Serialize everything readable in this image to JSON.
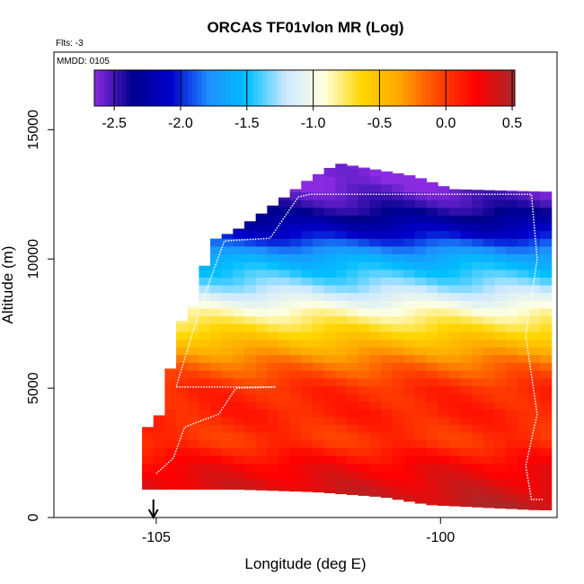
{
  "chart_data": {
    "type": "heatmap",
    "title": "ORCAS TF01vlon MR (Log)",
    "flights_label": "Flts: -3",
    "date_label": "MMDD: 0105",
    "xlabel": "Longitude (deg E)",
    "ylabel": "Altitude (m)",
    "xlim": [
      -106.8,
      -97.95
    ],
    "ylim": [
      0,
      18000
    ],
    "x_ticks": [
      -105,
      -100
    ],
    "x_tick_labels": [
      "-105",
      "-100"
    ],
    "y_ticks": [
      0,
      5000,
      10000,
      15000
    ],
    "y_tick_labels": [
      "0",
      "5000",
      "10000",
      "15000"
    ],
    "colorbar": {
      "range": [
        -2.65,
        0.52
      ],
      "ticks": [
        -2.5,
        -2.0,
        -1.5,
        -1.0,
        -0.5,
        0.0,
        0.5
      ],
      "tick_labels": [
        "-2.5",
        "-2.0",
        "-1.5",
        "-1.0",
        "-0.5",
        "0.0",
        "0.5"
      ],
      "colors": [
        "#8a2be2",
        "#00008b",
        "#0000cd",
        "#1e90ff",
        "#00bfff",
        "#cce8ff",
        "#ffffe0",
        "#ffd700",
        "#ffa500",
        "#ff4500",
        "#ff0000",
        "#a52a2a"
      ]
    },
    "marker_longitude": -105.05,
    "field_profile": [
      {
        "alt": 400,
        "v": 0.45
      },
      {
        "alt": 1200,
        "v": 0.35
      },
      {
        "alt": 2000,
        "v": 0.25
      },
      {
        "alt": 3000,
        "v": 0.0
      },
      {
        "alt": 4000,
        "v": 0.1
      },
      {
        "alt": 5000,
        "v": 0.05
      },
      {
        "alt": 6000,
        "v": -0.2
      },
      {
        "alt": 7000,
        "v": -0.55
      },
      {
        "alt": 8000,
        "v": -0.9
      },
      {
        "alt": 9000,
        "v": -1.3
      },
      {
        "alt": 10000,
        "v": -1.6
      },
      {
        "alt": 11000,
        "v": -2.1
      },
      {
        "alt": 12000,
        "v": -2.45
      },
      {
        "alt": 13000,
        "v": -2.65
      }
    ],
    "data_envelope_top": [
      {
        "lon": -105.25,
        "alt": 3500
      },
      {
        "lon": -105.0,
        "alt": 3500
      },
      {
        "lon": -104.8,
        "alt": 5300
      },
      {
        "lon": -104.55,
        "alt": 7600
      },
      {
        "lon": -104.3,
        "alt": 8300
      },
      {
        "lon": -104.05,
        "alt": 10700
      },
      {
        "lon": -103.6,
        "alt": 11100
      },
      {
        "lon": -103.25,
        "alt": 11600
      },
      {
        "lon": -102.8,
        "alt": 12300
      },
      {
        "lon": -102.55,
        "alt": 12700
      },
      {
        "lon": -102.3,
        "alt": 13100
      },
      {
        "lon": -101.8,
        "alt": 13700
      },
      {
        "lon": -100.45,
        "alt": 13200
      },
      {
        "lon": -99.8,
        "alt": 12700
      },
      {
        "lon": -98.1,
        "alt": 12600
      }
    ],
    "data_envelope_bottom": [
      {
        "lon": -105.25,
        "alt": 1100
      },
      {
        "lon": -103.6,
        "alt": 1100
      },
      {
        "lon": -102.2,
        "alt": 1000
      },
      {
        "lon": -101.0,
        "alt": 800
      },
      {
        "lon": -100.2,
        "alt": 500
      },
      {
        "lon": -98.3,
        "alt": 300
      },
      {
        "lon": -98.1,
        "alt": 300
      }
    ],
    "flight_track": [
      {
        "lon": -105.0,
        "alt": 1700
      },
      {
        "lon": -104.7,
        "alt": 2300
      },
      {
        "lon": -104.5,
        "alt": 3500
      },
      {
        "lon": -103.9,
        "alt": 4000
      },
      {
        "lon": -103.6,
        "alt": 5000
      },
      {
        "lon": -102.9,
        "alt": 5050
      },
      {
        "lon": -104.65,
        "alt": 5050
      },
      {
        "lon": -104.2,
        "alt": 8300
      },
      {
        "lon": -103.8,
        "alt": 10700
      },
      {
        "lon": -103.0,
        "alt": 10800
      },
      {
        "lon": -102.5,
        "alt": 12400
      },
      {
        "lon": -102.3,
        "alt": 12500
      },
      {
        "lon": -98.4,
        "alt": 12500
      },
      {
        "lon": -98.3,
        "alt": 10000
      },
      {
        "lon": -98.5,
        "alt": 7000
      },
      {
        "lon": -98.3,
        "alt": 4000
      },
      {
        "lon": -98.5,
        "alt": 2000
      },
      {
        "lon": -98.4,
        "alt": 700
      },
      {
        "lon": -98.2,
        "alt": 700
      }
    ]
  }
}
